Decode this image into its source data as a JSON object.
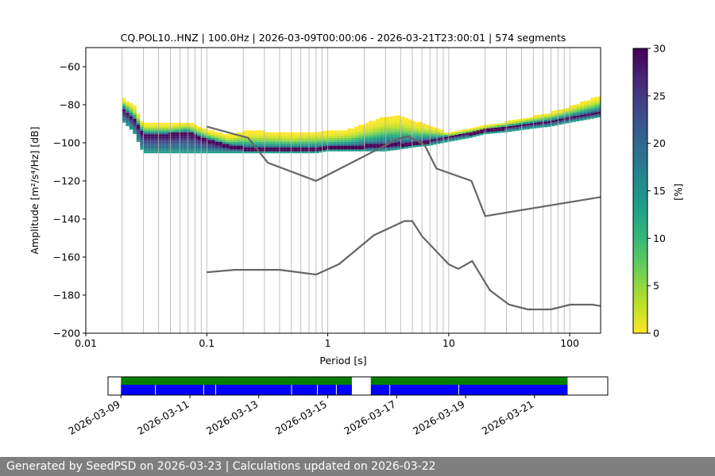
{
  "chart_data": {
    "type": "heatmap",
    "title": "CQ.POL10..HNZ | 100.0Hz | 2026-03-09T00:00:06 - 2026-03-21T23:00:01 | 574 segments",
    "xlabel": "Period [s]",
    "ylabel": "Amplitude [m²/s⁴/Hz] [dB]",
    "xscale": "log",
    "xlim": [
      0.01,
      180
    ],
    "ylim": [
      -200,
      -50
    ],
    "xticks": [
      0.01,
      0.1,
      1,
      10,
      100
    ],
    "xtick_labels": [
      "0.01",
      "0.1",
      "1",
      "10",
      "100"
    ],
    "yticks": [
      -200,
      -180,
      -160,
      -140,
      -120,
      -100,
      -80,
      -60
    ],
    "ytick_labels": [
      "−200",
      "−180",
      "−160",
      "−140",
      "−120",
      "−100",
      "−80",
      "−60"
    ],
    "grid_periods": [
      0.02,
      0.03,
      0.04,
      0.05,
      0.06,
      0.07,
      0.08,
      0.09,
      0.1,
      0.2,
      0.3,
      0.4,
      0.5,
      0.6,
      0.7,
      0.8,
      0.9,
      1,
      2,
      3,
      4,
      5,
      6,
      7,
      8,
      9,
      10,
      20,
      30,
      40,
      50,
      60,
      70,
      80,
      90,
      100
    ],
    "colorbar": {
      "label": "[%]",
      "range": [
        0,
        30
      ],
      "ticks": [
        0,
        5,
        10,
        15,
        20,
        25,
        30
      ],
      "colors": [
        "#fde725",
        "#b5de2b",
        "#6ece58",
        "#35b779",
        "#1f9e89",
        "#26828e",
        "#31688e",
        "#3e4989",
        "#482878",
        "#440154"
      ]
    },
    "density_ridge": {
      "period": [
        0.02,
        0.025,
        0.03,
        0.05,
        0.07,
        0.1,
        0.15,
        0.2,
        0.3,
        0.5,
        0.8,
        1,
        1.5,
        2,
        3,
        4,
        5,
        7,
        10,
        15,
        20,
        30,
        50,
        70,
        100,
        150,
        180
      ],
      "mode_db": [
        -82,
        -88,
        -96,
        -96,
        -95,
        -99,
        -102,
        -103,
        -103.5,
        -103.5,
        -103.5,
        -103,
        -102.5,
        -102,
        -101.5,
        -101,
        -100.5,
        -99,
        -97,
        -95,
        -93.5,
        -92,
        -90,
        -89,
        -87,
        -85,
        -84
      ],
      "upper_db": [
        -76,
        -80,
        -90,
        -90,
        -89,
        -93,
        -96,
        -94,
        -94,
        -95,
        -94,
        -94,
        -93,
        -90,
        -86,
        -86,
        -88,
        -91,
        -95,
        -93,
        -91,
        -89,
        -86,
        -84,
        -81,
        -77,
        -75
      ],
      "lower_db": [
        -88,
        -94,
        -105,
        -105,
        -105,
        -105,
        -105,
        -105,
        -105,
        -105,
        -105,
        -104,
        -104,
        -104,
        -104,
        -103,
        -102,
        -101,
        -99,
        -97,
        -95,
        -94,
        -92,
        -91,
        -89,
        -87,
        -86
      ]
    },
    "noise_models": [
      {
        "name": "upper",
        "period": [
          0.1,
          0.22,
          0.32,
          0.8,
          3.8,
          4.6,
          6.3,
          7.9,
          15.4,
          20,
          180
        ],
        "db": [
          -91.5,
          -97.4,
          -110.5,
          -120,
          -98,
          -96.5,
          -101,
          -113.5,
          -120,
          -138.5,
          -128.5
        ]
      },
      {
        "name": "lower",
        "period": [
          0.1,
          0.17,
          0.4,
          0.8,
          1.24,
          2.4,
          4.3,
          5,
          6,
          10,
          12,
          15.6,
          21.9,
          31.6,
          45,
          70,
          101,
          154,
          180
        ],
        "db": [
          -168,
          -166.7,
          -166.7,
          -169.2,
          -163.7,
          -148.6,
          -141.1,
          -141.1,
          -149,
          -163.8,
          -166.2,
          -162.1,
          -177.5,
          -185,
          -187.5,
          -187.5,
          -185,
          -185,
          -185.7
        ]
      }
    ],
    "timeline": {
      "xlim": [
        "2026-03-08T15:00",
        "2026-03-23T03:00"
      ],
      "tick_labels": [
        "2026-03-09",
        "2026-03-11",
        "2026-03-13",
        "2026-03-15",
        "2026-03-17",
        "2026-03-19",
        "2026-03-21"
      ],
      "tick_days": [
        9,
        11,
        13,
        15,
        17,
        19,
        21
      ],
      "data_intervals": [
        {
          "start_day": 9.0,
          "end_day": 15.7
        },
        {
          "start_day": 16.25,
          "end_day": 21.96
        }
      ],
      "data_gaps_day": [
        10.0,
        11.4,
        11.75,
        13.95,
        14.7,
        15.25,
        16.8,
        18.8
      ],
      "coverage_color": "#008000",
      "data_color": "#0000ff"
    }
  },
  "footer": {
    "text": "Generated by SeedPSD on 2026-03-23 | Calculations updated on 2026-03-22"
  }
}
